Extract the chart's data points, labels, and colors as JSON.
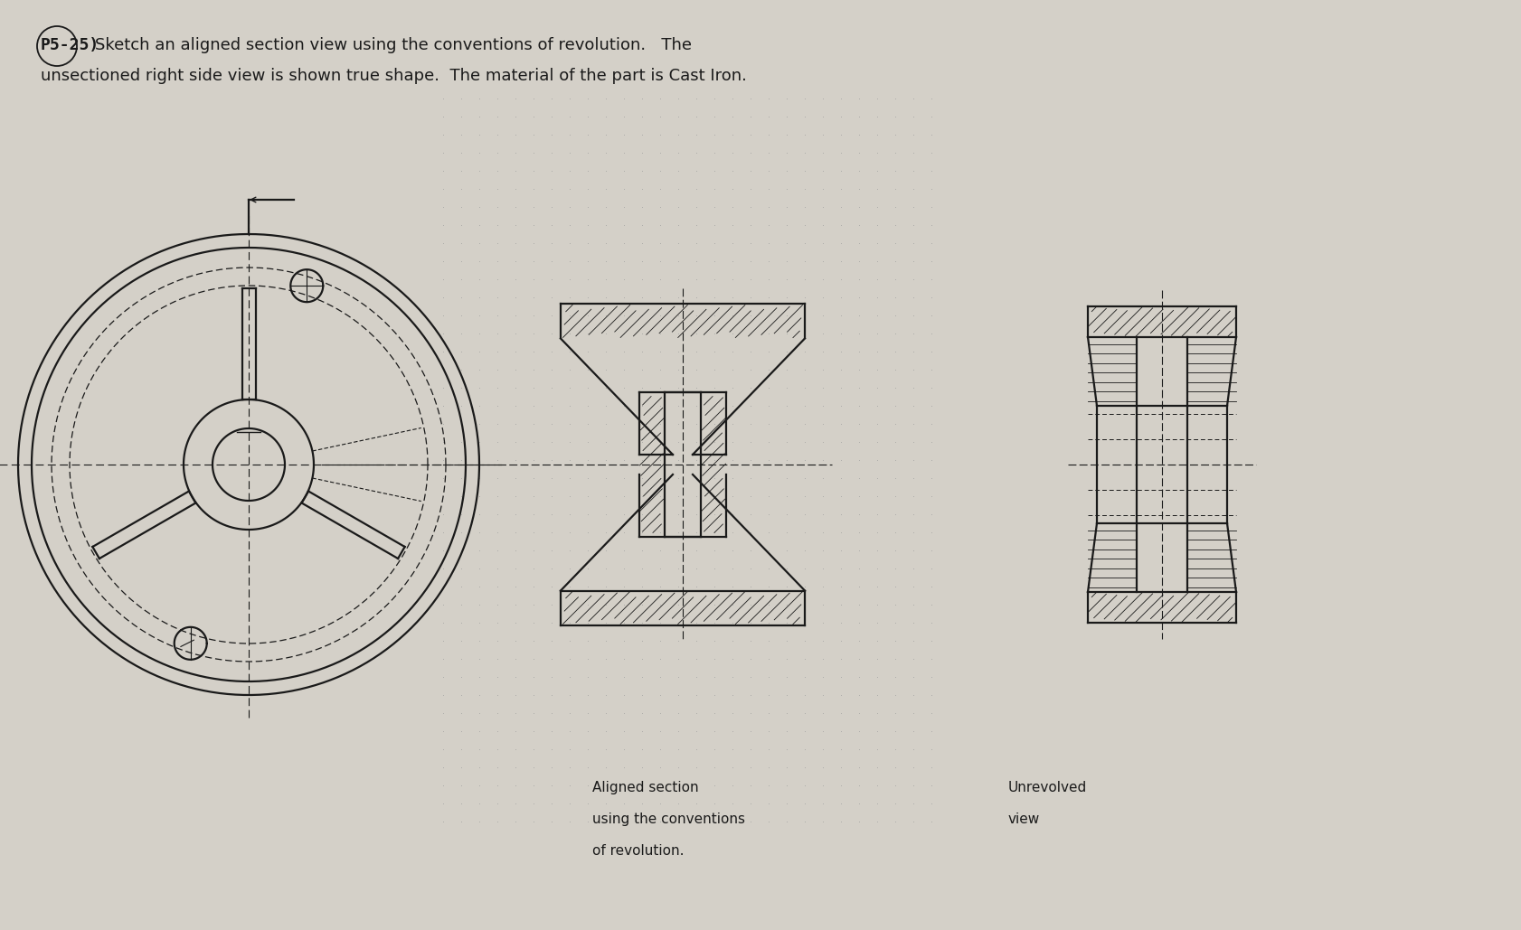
{
  "bg_color": "#d4d0c8",
  "line_color": "#1a1a1a",
  "title_line1": "P5-25)  Sketch an aligned section view using the conventions of revolution.   The",
  "title_line2": "unsectioned right side view is shown true shape.  The material of the part is Cast Iron.",
  "caption1_line1": "Aligned section",
  "caption1_line2": "using the conventions",
  "caption1_line3": "of revolution.",
  "caption2_line1": "Unrevolved",
  "caption2_line2": "view",
  "font_size_title": 13,
  "font_size_caption": 11
}
